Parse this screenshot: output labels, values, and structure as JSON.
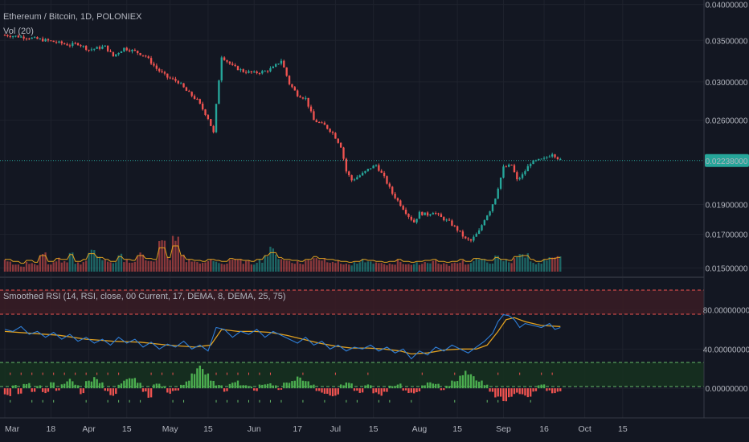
{
  "chart_data": [
    {
      "type": "candlestick",
      "title": "Ethereum / Bitcoin, 1D, POLONIEX",
      "subtitle": "Vol (20)",
      "last_price_label": "0.02238000",
      "last_price": 0.02238,
      "y_tick_labels": [
        "0.04000000",
        "0.03500000",
        "0.03000000",
        "0.02600000",
        "0.02238000",
        "0.01900000",
        "0.01700000",
        "0.01500000"
      ],
      "y_ticks": [
        0.04,
        0.035,
        0.03,
        0.026,
        0.019,
        0.017,
        0.015
      ],
      "y_scale": "log",
      "ylim": [
        0.0148,
        0.0402
      ],
      "close_path": [
        [
          0,
          0.0357
        ],
        [
          8,
          0.0354
        ],
        [
          17,
          0.0349
        ],
        [
          24,
          0.0344
        ],
        [
          27,
          0.0346
        ],
        [
          31,
          0.0338
        ],
        [
          37,
          0.0342
        ],
        [
          40,
          0.033
        ],
        [
          44,
          0.034
        ],
        [
          48,
          0.0336
        ],
        [
          52,
          0.033
        ],
        [
          56,
          0.0315
        ],
        [
          60,
          0.0305
        ],
        [
          64,
          0.03
        ],
        [
          67,
          0.029
        ],
        [
          71,
          0.028
        ],
        [
          75,
          0.0262
        ],
        [
          77,
          0.0248
        ],
        [
          78,
          0.0275
        ],
        [
          80,
          0.033
        ],
        [
          84,
          0.0318
        ],
        [
          88,
          0.0312
        ],
        [
          92,
          0.031
        ],
        [
          96,
          0.0312
        ],
        [
          99,
          0.0316
        ],
        [
          102,
          0.0325
        ],
        [
          105,
          0.0298
        ],
        [
          108,
          0.0286
        ],
        [
          111,
          0.0282
        ],
        [
          114,
          0.026
        ],
        [
          118,
          0.0255
        ],
        [
          121,
          0.0248
        ],
        [
          124,
          0.0236
        ],
        [
          126,
          0.0215
        ],
        [
          128,
          0.0208
        ],
        [
          132,
          0.0213
        ],
        [
          135,
          0.0218
        ],
        [
          137,
          0.022
        ],
        [
          140,
          0.021
        ],
        [
          143,
          0.0198
        ],
        [
          146,
          0.019
        ],
        [
          149,
          0.0182
        ],
        [
          151,
          0.0178
        ],
        [
          153,
          0.0184
        ],
        [
          156,
          0.0183
        ],
        [
          158,
          0.0185
        ],
        [
          161,
          0.0181
        ],
        [
          164,
          0.0178
        ],
        [
          167,
          0.0173
        ],
        [
          170,
          0.0167
        ],
        [
          172,
          0.0166
        ],
        [
          175,
          0.0172
        ],
        [
          177,
          0.018
        ],
        [
          179,
          0.0186
        ],
        [
          181,
          0.0195
        ],
        [
          183,
          0.021
        ],
        [
          184,
          0.0218
        ],
        [
          187,
          0.022
        ],
        [
          189,
          0.0208
        ],
        [
          191,
          0.0212
        ],
        [
          194,
          0.0222
        ],
        [
          197,
          0.0224
        ],
        [
          199,
          0.0225
        ],
        [
          202,
          0.023
        ],
        [
          205,
          0.0224
        ]
      ],
      "volume_levels": [
        0.3,
        0.2,
        0.1,
        0.25,
        0.15,
        0.5,
        0.2,
        0.35,
        0.3,
        0.55,
        0.2,
        0.3,
        0.6,
        0.4,
        0.3,
        0.2,
        0.45,
        0.3,
        0.25,
        0.5,
        0.35,
        0.3,
        0.9,
        0.4,
        1.0,
        0.5,
        0.3,
        0.25,
        0.2,
        0.3,
        0.25,
        0.2,
        0.35,
        0.3,
        0.25,
        0.2,
        0.3,
        0.5,
        0.65,
        0.4,
        0.3,
        0.25,
        0.2,
        0.3,
        0.45,
        0.35,
        0.3,
        0.25,
        0.2,
        0.15,
        0.2,
        0.3,
        0.25,
        0.2,
        0.15,
        0.2,
        0.3,
        0.2,
        0.15,
        0.2,
        0.25,
        0.3,
        0.2,
        0.15,
        0.2,
        0.3,
        0.2,
        0.35,
        0.3,
        0.25,
        0.4,
        0.3,
        0.25,
        0.45,
        0.5,
        0.3,
        0.2,
        0.3,
        0.35,
        0.4
      ],
      "series": [
        {
          "name": "Vol (20)"
        }
      ]
    },
    {
      "type": "line",
      "title": "Smoothed RSI (14, RSI, close, 00 Current, 17, DEMA, 8, DEMA, 25, 75)",
      "y_tick_labels": [
        "80.00000000",
        "40.00000000",
        "0.00000000"
      ],
      "y_ticks": [
        80,
        40,
        0
      ],
      "ylim": [
        -22,
        105
      ],
      "levels": [
        100,
        75,
        25,
        0
      ],
      "rsi_fast": [
        [
          0,
          60
        ],
        [
          3,
          58
        ],
        [
          6,
          63
        ],
        [
          9,
          55
        ],
        [
          12,
          58
        ],
        [
          15,
          52
        ],
        [
          18,
          57
        ],
        [
          21,
          50
        ],
        [
          24,
          55
        ],
        [
          27,
          48
        ],
        [
          30,
          52
        ],
        [
          33,
          46
        ],
        [
          36,
          50
        ],
        [
          39,
          44
        ],
        [
          42,
          52
        ],
        [
          45,
          46
        ],
        [
          48,
          50
        ],
        [
          51,
          42
        ],
        [
          54,
          47
        ],
        [
          57,
          40
        ],
        [
          60,
          45
        ],
        [
          63,
          42
        ],
        [
          66,
          48
        ],
        [
          69,
          40
        ],
        [
          72,
          44
        ],
        [
          75,
          38
        ],
        [
          78,
          62
        ],
        [
          81,
          60
        ],
        [
          84,
          52
        ],
        [
          87,
          58
        ],
        [
          90,
          55
        ],
        [
          93,
          60
        ],
        [
          96,
          52
        ],
        [
          99,
          58
        ],
        [
          102,
          54
        ],
        [
          105,
          50
        ],
        [
          108,
          46
        ],
        [
          111,
          52
        ],
        [
          114,
          44
        ],
        [
          117,
          48
        ],
        [
          120,
          40
        ],
        [
          123,
          44
        ],
        [
          126,
          38
        ],
        [
          129,
          42
        ],
        [
          132,
          40
        ],
        [
          135,
          44
        ],
        [
          138,
          38
        ],
        [
          141,
          42
        ],
        [
          144,
          36
        ],
        [
          147,
          40
        ],
        [
          150,
          30
        ],
        [
          153,
          38
        ],
        [
          156,
          34
        ],
        [
          159,
          42
        ],
        [
          162,
          38
        ],
        [
          165,
          44
        ],
        [
          168,
          40
        ],
        [
          171,
          36
        ],
        [
          174,
          42
        ],
        [
          177,
          48
        ],
        [
          180,
          56
        ],
        [
          182,
          68
        ],
        [
          184,
          75
        ],
        [
          186,
          74
        ],
        [
          188,
          70
        ],
        [
          190,
          62
        ],
        [
          192,
          66
        ],
        [
          195,
          64
        ],
        [
          198,
          62
        ],
        [
          201,
          66
        ],
        [
          203,
          60
        ],
        [
          205,
          62
        ]
      ],
      "rsi_slow": [
        [
          0,
          58
        ],
        [
          10,
          56
        ],
        [
          20,
          54
        ],
        [
          30,
          50
        ],
        [
          40,
          48
        ],
        [
          50,
          47
        ],
        [
          60,
          44
        ],
        [
          70,
          42
        ],
        [
          76,
          44
        ],
        [
          80,
          60
        ],
        [
          86,
          58
        ],
        [
          92,
          58
        ],
        [
          98,
          57
        ],
        [
          104,
          54
        ],
        [
          110,
          50
        ],
        [
          116,
          46
        ],
        [
          122,
          43
        ],
        [
          128,
          41
        ],
        [
          134,
          41
        ],
        [
          140,
          40
        ],
        [
          146,
          38
        ],
        [
          150,
          35
        ],
        [
          156,
          36
        ],
        [
          162,
          39
        ],
        [
          168,
          40
        ],
        [
          174,
          40
        ],
        [
          178,
          44
        ],
        [
          182,
          58
        ],
        [
          185,
          70
        ],
        [
          188,
          72
        ],
        [
          192,
          68
        ],
        [
          198,
          64
        ],
        [
          205,
          63
        ]
      ],
      "histogram": [
        -8,
        4,
        -6,
        6,
        -4,
        3,
        -5,
        8,
        -3,
        5,
        10,
        4,
        -6,
        8,
        12,
        6,
        -3,
        -8,
        5,
        10,
        14,
        6,
        -4,
        -10,
        5,
        2,
        -6,
        -3,
        4,
        8,
        18,
        28,
        16,
        8,
        4,
        -4,
        6,
        8,
        4,
        2,
        -3,
        4,
        6,
        3,
        -2,
        6,
        10,
        14,
        8,
        4,
        -3,
        -6,
        -10,
        -8,
        4,
        6,
        -3,
        -5,
        4,
        -6,
        -8,
        -4,
        3,
        5,
        -3,
        -6,
        -4,
        4,
        8,
        6,
        -2,
        3,
        8,
        14,
        18,
        16,
        8,
        4,
        -4,
        -10,
        -18,
        -12,
        -6,
        -8,
        -10,
        -4,
        4,
        -3,
        -6,
        -4
      ]
    }
  ],
  "x_tick_labels": [
    "Mar",
    "18",
    "Apr",
    "15",
    "May",
    "15",
    "Jun",
    "17",
    "Jul",
    "15",
    "Aug",
    "15",
    "Sep",
    "16",
    "Oct",
    "15"
  ],
  "x_ticks_day": [
    0,
    17,
    31,
    45,
    61,
    75,
    92,
    108,
    122,
    136,
    153,
    167,
    184,
    199,
    214,
    228
  ],
  "x_range_day": [
    0,
    258
  ]
}
